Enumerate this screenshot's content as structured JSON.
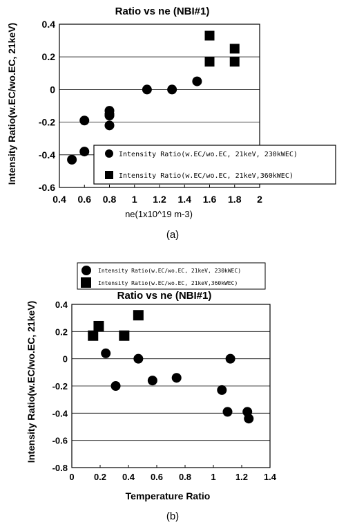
{
  "chart_data": [
    {
      "type": "scatter",
      "title": "Ratio vs ne (NBI#1)",
      "xlabel": "ne(1x10^19 m-3)",
      "ylabel": "Intensity Ratio(w.EC/wo.EC, 21keV)",
      "xlim": [
        0.4,
        2
      ],
      "ylim": [
        -0.6,
        0.4
      ],
      "xticks": [
        "0.4",
        "0.6",
        "0.8",
        "1",
        "1.2",
        "1.4",
        "1.6",
        "1.8",
        "2"
      ],
      "yticks": [
        "-0.6",
        "-0.4",
        "-0.2",
        "0",
        "0.2",
        "0.4"
      ],
      "grid": "horizontal",
      "legend_position": "lower-right",
      "caption": "(a)",
      "series": [
        {
          "name": "Intensity Ratio(w.EC/wo.EC, 21keV, 230kWEC)",
          "marker": "circle",
          "x": [
            0.5,
            0.6,
            0.6,
            0.8,
            0.8,
            0.8,
            0.8,
            1.1,
            1.3,
            1.5
          ],
          "y": [
            -0.43,
            -0.38,
            -0.19,
            -0.13,
            -0.15,
            -0.16,
            -0.22,
            0.0,
            0.0,
            0.05
          ]
        },
        {
          "name": "Intensity Ratio(w.EC/wo.EC, 21keV,360kWEC)",
          "marker": "square",
          "x": [
            1.6,
            1.6,
            1.8,
            1.8
          ],
          "y": [
            0.33,
            0.17,
            0.25,
            0.17
          ]
        }
      ]
    },
    {
      "type": "scatter",
      "title": "Ratio vs ne (NBI#1)",
      "xlabel": "Temperature Ratio",
      "ylabel": "Intensity Ratio(w.EC/wo.EC, 21keV)",
      "xlim": [
        0,
        1.4
      ],
      "ylim": [
        -0.8,
        0.4
      ],
      "xticks": [
        "0",
        "0.2",
        "0.4",
        "0.6",
        "0.8",
        "1",
        "1.2",
        "1.4"
      ],
      "yticks": [
        "-0.8",
        "-0.6",
        "-0.4",
        "-0.2",
        "0",
        "0.2",
        "0.4"
      ],
      "grid": "horizontal",
      "legend_position": "top (above plot)",
      "caption": "(b)",
      "series": [
        {
          "name": "Intensity Ratio(w.EC/wo.EC, 21keV, 230kWEC)",
          "marker": "circle",
          "x": [
            0.24,
            0.31,
            0.47,
            0.57,
            0.74,
            1.06,
            1.1,
            1.12,
            1.24,
            1.25
          ],
          "y": [
            0.04,
            -0.2,
            0.0,
            -0.16,
            -0.14,
            -0.23,
            -0.39,
            0.0,
            -0.39,
            -0.44
          ]
        },
        {
          "name": "Intensity Ratio(w.EC/wo.EC, 21keV,360kWEC)",
          "marker": "square",
          "x": [
            0.15,
            0.19,
            0.37,
            0.47
          ],
          "y": [
            0.17,
            0.24,
            0.17,
            0.32
          ]
        }
      ]
    }
  ]
}
